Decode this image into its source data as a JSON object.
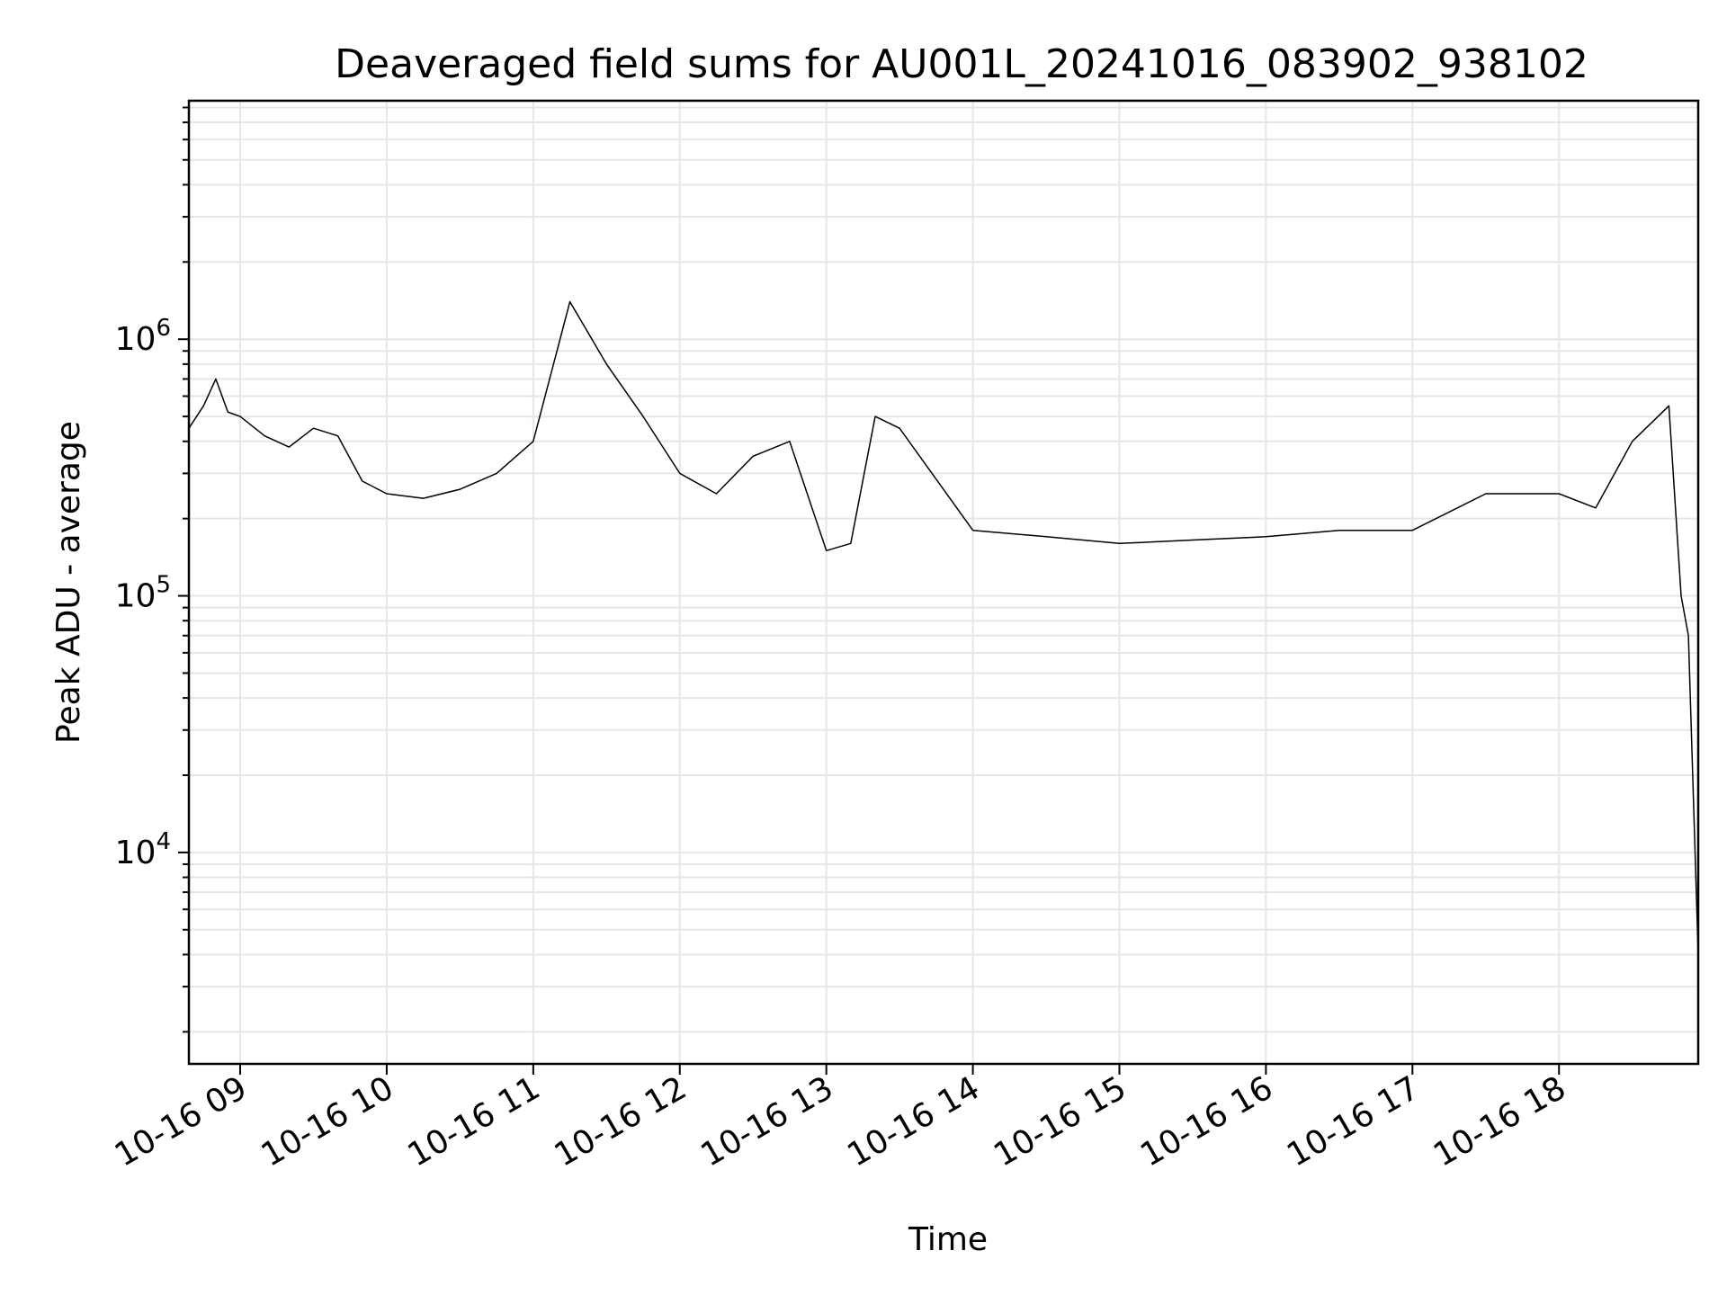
{
  "chart_data": {
    "type": "line",
    "title": "Deaveraged field sums for AU001L_20241016_083902_938102",
    "xlabel": "Time",
    "ylabel": "Peak ADU - average",
    "yscale": "log",
    "ylim": [
      1500,
      8500000
    ],
    "xlim": [
      "2024-10-16 08:39",
      "2024-10-16 18:57"
    ],
    "grid": true,
    "line_color": "#000000",
    "grid_color": "#e6e6e6",
    "x_ticks": [
      {
        "t": "2024-10-16 09:00",
        "label": "10-16 09"
      },
      {
        "t": "2024-10-16 10:00",
        "label": "10-16 10"
      },
      {
        "t": "2024-10-16 11:00",
        "label": "10-16 11"
      },
      {
        "t": "2024-10-16 12:00",
        "label": "10-16 12"
      },
      {
        "t": "2024-10-16 13:00",
        "label": "10-16 13"
      },
      {
        "t": "2024-10-16 14:00",
        "label": "10-16 14"
      },
      {
        "t": "2024-10-16 15:00",
        "label": "10-16 15"
      },
      {
        "t": "2024-10-16 16:00",
        "label": "10-16 16"
      },
      {
        "t": "2024-10-16 17:00",
        "label": "10-16 17"
      },
      {
        "t": "2024-10-16 18:00",
        "label": "10-16 18"
      }
    ],
    "y_ticks": [
      {
        "value": 10000,
        "base": "10",
        "exp": "4"
      },
      {
        "value": 100000,
        "base": "10",
        "exp": "5"
      },
      {
        "value": 1000000,
        "base": "10",
        "exp": "6"
      }
    ],
    "series": [
      {
        "x": [
          "2024-10-16 08:39",
          "2024-10-16 08:45",
          "2024-10-16 08:50",
          "2024-10-16 08:55",
          "2024-10-16 09:00",
          "2024-10-16 09:10",
          "2024-10-16 09:20",
          "2024-10-16 09:30",
          "2024-10-16 09:40",
          "2024-10-16 09:50",
          "2024-10-16 10:00",
          "2024-10-16 10:15",
          "2024-10-16 10:30",
          "2024-10-16 10:45",
          "2024-10-16 11:00",
          "2024-10-16 11:15",
          "2024-10-16 11:30",
          "2024-10-16 11:45",
          "2024-10-16 12:00",
          "2024-10-16 12:15",
          "2024-10-16 12:30",
          "2024-10-16 12:45",
          "2024-10-16 13:00",
          "2024-10-16 13:10",
          "2024-10-16 13:20",
          "2024-10-16 13:30",
          "2024-10-16 14:00",
          "2024-10-16 14:30",
          "2024-10-16 15:00",
          "2024-10-16 15:30",
          "2024-10-16 16:00",
          "2024-10-16 16:30",
          "2024-10-16 17:00",
          "2024-10-16 17:30",
          "2024-10-16 18:00",
          "2024-10-16 18:15",
          "2024-10-16 18:30",
          "2024-10-16 18:45",
          "2024-10-16 18:50",
          "2024-10-16 18:53",
          "2024-10-16 18:57"
        ],
        "y": [
          450000,
          550000,
          700000,
          520000,
          500000,
          420000,
          380000,
          450000,
          420000,
          280000,
          250000,
          240000,
          260000,
          300000,
          400000,
          1400000,
          800000,
          500000,
          300000,
          250000,
          350000,
          400000,
          150000,
          160000,
          500000,
          450000,
          180000,
          170000,
          160000,
          165000,
          170000,
          180000,
          180000,
          250000,
          250000,
          220000,
          400000,
          550000,
          100000,
          70000,
          4000
        ]
      }
    ]
  }
}
